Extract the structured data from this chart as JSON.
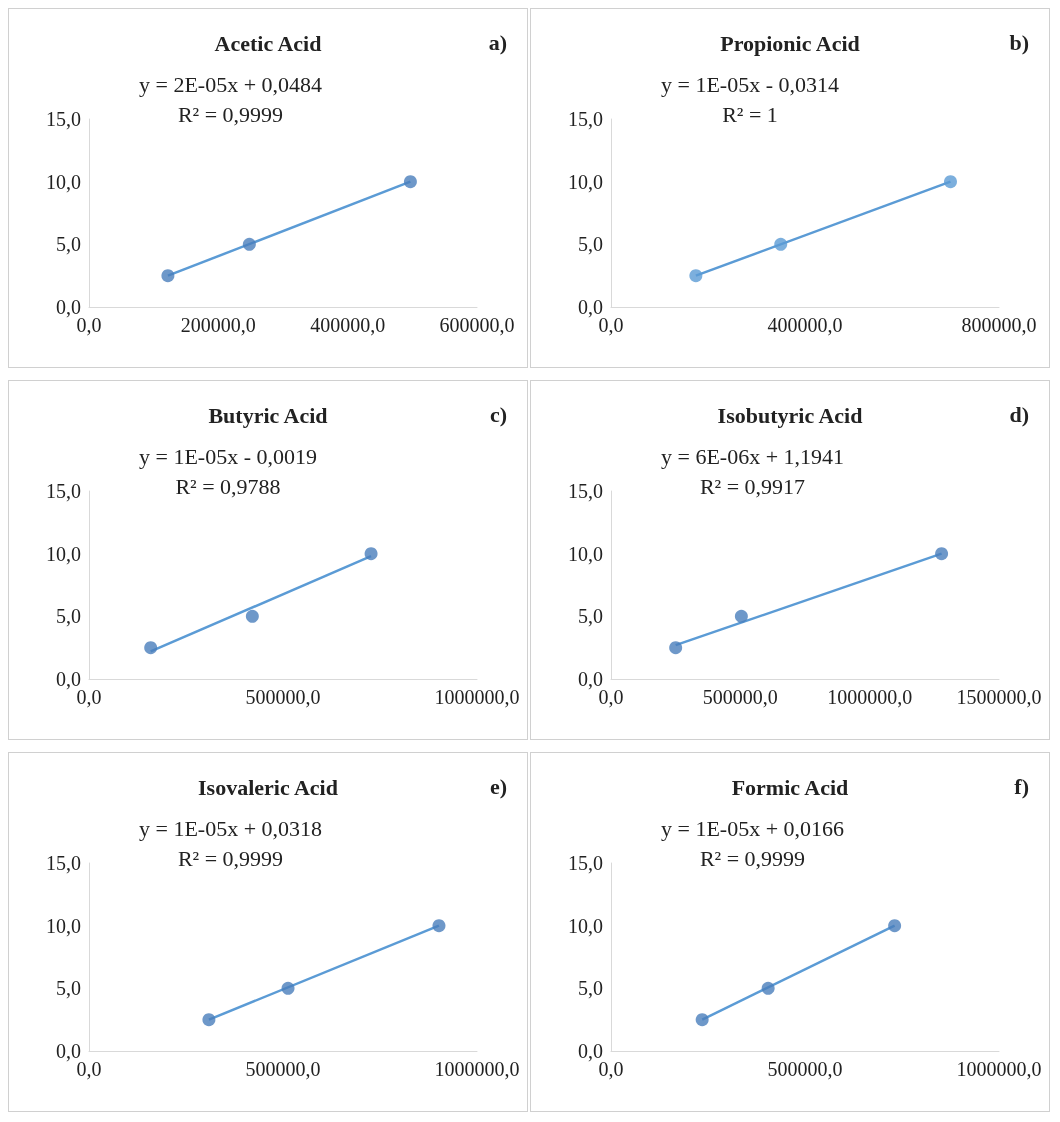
{
  "chart_data": [
    {
      "type": "scatter",
      "title": "Acetic Acid",
      "annotations": [
        "y = 2E-05x + 0,0484\nR² = 0,9999",
        "a)"
      ],
      "grid": false,
      "xlim": [
        0,
        600000
      ],
      "xticks": [
        {
          "value": 0,
          "label": "0,0"
        },
        {
          "value": 200000,
          "label": "200000,0"
        },
        {
          "value": 400000,
          "label": "400000,0"
        },
        {
          "value": 600000,
          "label": "600000,0"
        }
      ],
      "ylim": [
        0,
        15
      ],
      "yticks": [
        {
          "value": 0,
          "label": "0,0"
        },
        {
          "value": 5,
          "label": "5,0"
        },
        {
          "value": 10,
          "label": "10,0"
        },
        {
          "value": 15,
          "label": "15,0"
        }
      ],
      "series": [
        {
          "marker": "circle",
          "color": "#4a7ebb",
          "x": [
            122000,
            248000,
            497000
          ],
          "values": [
            2.5,
            5,
            10
          ]
        },
        {
          "type": "line",
          "marker": "none",
          "color": "#5b9bd5",
          "x": [
            122000,
            497000
          ],
          "values": [
            2.5,
            10
          ]
        }
      ]
    },
    {
      "type": "scatter",
      "title": "Propionic Acid",
      "annotations": [
        "y = 1E-05x - 0,0314\nR² = 1",
        "b)"
      ],
      "grid": false,
      "xlim": [
        0,
        800000
      ],
      "xticks": [
        {
          "value": 0,
          "label": "0,0"
        },
        {
          "value": 400000,
          "label": "400000,0"
        },
        {
          "value": 800000,
          "label": "800000,0"
        }
      ],
      "ylim": [
        0,
        15
      ],
      "yticks": [
        {
          "value": 0,
          "label": "0,0"
        },
        {
          "value": 5,
          "label": "5,0"
        },
        {
          "value": 10,
          "label": "10,0"
        },
        {
          "value": 15,
          "label": "15,0"
        }
      ],
      "series": [
        {
          "marker": "circle",
          "color": "#5b9bd5",
          "x": [
            175000,
            350000,
            700000
          ],
          "values": [
            2.5,
            5,
            10
          ]
        },
        {
          "type": "line",
          "marker": "none",
          "color": "#5b9bd5",
          "x": [
            175000,
            700000
          ],
          "values": [
            2.5,
            10
          ]
        }
      ]
    },
    {
      "type": "scatter",
      "title": "Butyric Acid",
      "annotations": [
        "y = 1E-05x - 0,0019\nR² = 0,9788",
        "c)"
      ],
      "grid": false,
      "xlim": [
        0,
        1000000
      ],
      "xticks": [
        {
          "value": 0,
          "label": "0,0"
        },
        {
          "value": 500000,
          "label": "500000,0"
        },
        {
          "value": 1000000,
          "label": "1000000,0"
        }
      ],
      "ylim": [
        0,
        15
      ],
      "yticks": [
        {
          "value": 0,
          "label": "0,0"
        },
        {
          "value": 5,
          "label": "5,0"
        },
        {
          "value": 10,
          "label": "10,0"
        },
        {
          "value": 15,
          "label": "15,0"
        }
      ],
      "series": [
        {
          "marker": "circle",
          "color": "#4a7ebb",
          "x": [
            159000,
            421000,
            727000
          ],
          "values": [
            2.5,
            5,
            10
          ]
        },
        {
          "type": "line",
          "marker": "none",
          "color": "#5b9bd5",
          "x": [
            159000,
            727000
          ],
          "values": [
            2.2,
            9.8
          ]
        }
      ]
    },
    {
      "type": "scatter",
      "title": "Isobutyric Acid",
      "annotations": [
        "y = 6E-06x + 1,1941\nR² = 0,9917",
        "d)"
      ],
      "grid": false,
      "xlim": [
        0,
        1500000
      ],
      "xticks": [
        {
          "value": 0,
          "label": "0,0"
        },
        {
          "value": 500000,
          "label": "500000,0"
        },
        {
          "value": 1000000,
          "label": "1000000,0"
        },
        {
          "value": 1500000,
          "label": "1500000,0"
        }
      ],
      "ylim": [
        0,
        15
      ],
      "yticks": [
        {
          "value": 0,
          "label": "0,0"
        },
        {
          "value": 5,
          "label": "5,0"
        },
        {
          "value": 10,
          "label": "10,0"
        },
        {
          "value": 15,
          "label": "15,0"
        }
      ],
      "series": [
        {
          "marker": "circle",
          "color": "#4a7ebb",
          "x": [
            250000,
            504000,
            1278000
          ],
          "values": [
            2.5,
            5,
            10
          ]
        },
        {
          "type": "line",
          "marker": "none",
          "color": "#5b9bd5",
          "x": [
            250000,
            1278000
          ],
          "values": [
            2.7,
            10
          ]
        }
      ]
    },
    {
      "type": "scatter",
      "title": "Isovaleric Acid",
      "annotations": [
        "y = 1E-05x + 0,0318\nR² = 0,9999",
        "e)"
      ],
      "grid": false,
      "xlim": [
        0,
        1000000
      ],
      "xticks": [
        {
          "value": 0,
          "label": "0,0"
        },
        {
          "value": 500000,
          "label": "500000,0"
        },
        {
          "value": 1000000,
          "label": "1000000,0"
        }
      ],
      "ylim": [
        0,
        15
      ],
      "yticks": [
        {
          "value": 0,
          "label": "0,0"
        },
        {
          "value": 5,
          "label": "5,0"
        },
        {
          "value": 10,
          "label": "10,0"
        },
        {
          "value": 15,
          "label": "15,0"
        }
      ],
      "series": [
        {
          "marker": "circle",
          "color": "#4a7ebb",
          "x": [
            309000,
            513000,
            902000
          ],
          "values": [
            2.5,
            5,
            10
          ]
        },
        {
          "type": "line",
          "marker": "none",
          "color": "#5b9bd5",
          "x": [
            309000,
            902000
          ],
          "values": [
            2.5,
            10
          ]
        }
      ]
    },
    {
      "type": "scatter",
      "title": "Formic Acid",
      "annotations": [
        "y = 1E-05x + 0,0166\nR² = 0,9999",
        "f)"
      ],
      "grid": false,
      "xlim": [
        0,
        1000000
      ],
      "xticks": [
        {
          "value": 0,
          "label": "0,0"
        },
        {
          "value": 500000,
          "label": "500000,0"
        },
        {
          "value": 1000000,
          "label": "1000000,0"
        }
      ],
      "ylim": [
        0,
        15
      ],
      "yticks": [
        {
          "value": 0,
          "label": "0,0"
        },
        {
          "value": 5,
          "label": "5,0"
        },
        {
          "value": 10,
          "label": "10,0"
        },
        {
          "value": 15,
          "label": "15,0"
        }
      ],
      "series": [
        {
          "marker": "circle",
          "color": "#4a7ebb",
          "x": [
            235000,
            405000,
            731000
          ],
          "values": [
            2.5,
            5,
            10
          ]
        },
        {
          "type": "line",
          "marker": "none",
          "color": "#5b9bd5",
          "x": [
            235000,
            731000
          ],
          "values": [
            2.5,
            10
          ]
        }
      ]
    }
  ]
}
